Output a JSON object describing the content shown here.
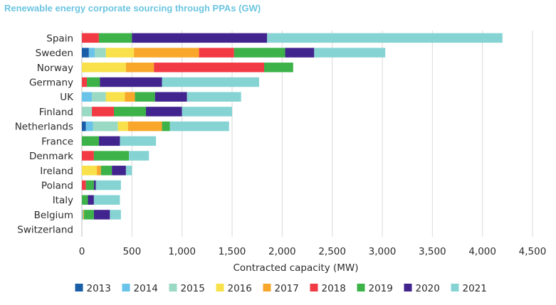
{
  "chart_data": {
    "type": "bar",
    "orientation": "horizontal",
    "stacked": true,
    "title": "Renewable energy corporate sourcing through PPAs (GW)",
    "xlabel": "Contracted capacity (MW)",
    "ylabel": "",
    "xlim": [
      0,
      4500
    ],
    "xticks": [
      0,
      500,
      1000,
      1500,
      2000,
      2500,
      3000,
      3500,
      4000,
      4500
    ],
    "xtick_labels": [
      "0",
      "500",
      "1,000",
      "1,500",
      "2,000",
      "2,500",
      "3,000",
      "3,500",
      "4,000",
      "4,500"
    ],
    "grid": true,
    "legend_position": "bottom",
    "categories": [
      "Spain",
      "Sweden",
      "Norway",
      "Germany",
      "UK",
      "Finland",
      "Netherlands",
      "France",
      "Denmark",
      "Ireland",
      "Poland",
      "Italy",
      "Belgium",
      "Switzerland"
    ],
    "series": [
      {
        "name": "2013",
        "color": "#1a5ea8",
        "values": [
          0,
          70,
          0,
          0,
          0,
          0,
          40,
          0,
          0,
          0,
          0,
          0,
          0,
          0
        ]
      },
      {
        "name": "2014",
        "color": "#6ac4ea",
        "values": [
          0,
          60,
          0,
          0,
          100,
          0,
          70,
          0,
          0,
          0,
          0,
          0,
          10,
          0
        ]
      },
      {
        "name": "2015",
        "color": "#9ad9c3",
        "values": [
          0,
          110,
          0,
          0,
          140,
          100,
          250,
          0,
          0,
          0,
          0,
          0,
          0,
          0
        ]
      },
      {
        "name": "2016",
        "color": "#f8e14a",
        "values": [
          0,
          280,
          440,
          0,
          190,
          0,
          100,
          0,
          0,
          150,
          0,
          0,
          0,
          0
        ]
      },
      {
        "name": "2017",
        "color": "#f9a72b",
        "values": [
          0,
          650,
          280,
          0,
          100,
          0,
          340,
          0,
          0,
          40,
          0,
          0,
          10,
          0
        ]
      },
      {
        "name": "2018",
        "color": "#f23a45",
        "values": [
          170,
          350,
          1100,
          50,
          0,
          220,
          0,
          0,
          120,
          0,
          40,
          0,
          0,
          0
        ]
      },
      {
        "name": "2019",
        "color": "#3cb249",
        "values": [
          330,
          510,
          290,
          130,
          200,
          320,
          80,
          170,
          350,
          110,
          80,
          60,
          100,
          0
        ]
      },
      {
        "name": "2020",
        "color": "#41248e",
        "values": [
          1350,
          290,
          0,
          620,
          320,
          360,
          0,
          210,
          0,
          140,
          20,
          60,
          160,
          0
        ]
      },
      {
        "name": "2021",
        "color": "#86d3d4",
        "values": [
          2350,
          710,
          0,
          970,
          540,
          500,
          590,
          360,
          200,
          60,
          250,
          260,
          110,
          0
        ]
      }
    ]
  }
}
